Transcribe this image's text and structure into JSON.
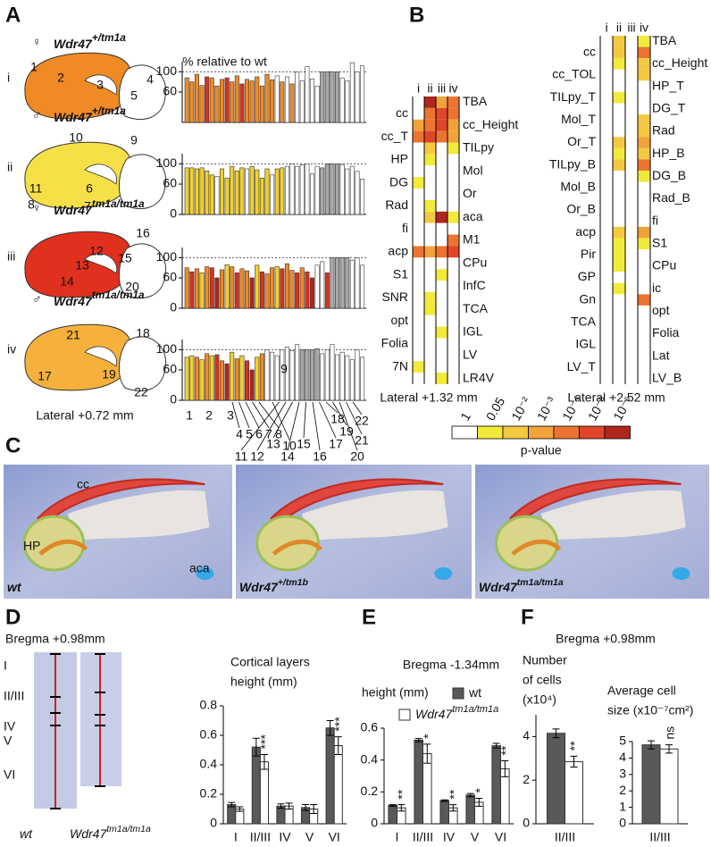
{
  "panel_labels": [
    "A",
    "B",
    "C",
    "D",
    "E",
    "F"
  ],
  "panel_a": {
    "title": "% relative to wt",
    "section": "Lateral +0.72 mm",
    "top_label": "9",
    "x_labels": [
      "1",
      "2",
      "3",
      "4",
      "5",
      "6",
      "7",
      "8",
      "9",
      "10",
      "11",
      "12",
      "13",
      "14",
      "15",
      "16",
      "17",
      "18",
      "19",
      "20",
      "21",
      "22"
    ],
    "rows": [
      {
        "numeral": "i",
        "sex": "♀",
        "gene": "Wdr47",
        "allele": "+/tm1a",
        "color": "#f08a24",
        "regions": [
          "1",
          "2",
          "3",
          "4",
          "5"
        ]
      },
      {
        "numeral": "ii",
        "sex": "♂",
        "gene": "Wdr47",
        "allele": "+/tm1a",
        "color": "#f7df48",
        "regions": [
          "10",
          "9",
          "11",
          "6",
          "8",
          "7"
        ]
      },
      {
        "numeral": "iii",
        "sex": "♀",
        "gene": "Wdr47",
        "allele": "tm1a/tm1a",
        "color": "#e0301e",
        "regions": [
          "16",
          "12",
          "15",
          "13",
          "14",
          "20"
        ]
      },
      {
        "numeral": "iv",
        "sex": "♂",
        "gene": "Wdr47",
        "allele": "tm1a/tm1a",
        "color": "#f5b13c",
        "regions": [
          "21",
          "18",
          "17",
          "19",
          "22"
        ]
      }
    ]
  },
  "panel_c": {
    "labels": [
      "cc",
      "HP",
      "aca"
    ],
    "images": [
      {
        "gene": "wt"
      },
      {
        "gene": "Wdr47",
        "allele": "+/tm1b"
      },
      {
        "gene": "Wdr47",
        "allele": "tm1a/tm1a"
      }
    ]
  },
  "panel_d": {
    "bregma": "Bregma +0.98mm",
    "layers": [
      "I",
      "II/III",
      "IV",
      "V",
      "VI"
    ],
    "samples": [
      {
        "gene": "wt"
      },
      {
        "gene": "Wdr47",
        "allele": "tm1a/tm1a"
      }
    ]
  },
  "panel_f": {
    "bregma": "Bregma +0.98mm"
  },
  "p_value_scale": {
    "title": "p-value",
    "ticks": [
      1,
      0.05,
      {
        "value": 0.01,
        "label": "10⁻²"
      },
      {
        "value": 0.001,
        "label": "10⁻³"
      },
      {
        "value": 0.0001,
        "label": "10⁻⁴"
      },
      {
        "value": 1e-05,
        "label": "10⁻⁵"
      },
      {
        "value": 1e-06,
        "label": "10⁻⁶"
      }
    ],
    "colors": [
      "#ffffff",
      "#f2ea3a",
      "#f5c842",
      "#f2a23a",
      "#ec7430",
      "#e0452a",
      "#b0261d"
    ]
  },
  "chart_data": [
    {
      "type": "bar",
      "ylim": [
        0,
        120
      ],
      "yticks": [
        60,
        100
      ],
      "reference_line": 100,
      "values": [
        88,
        80,
        95,
        73,
        90,
        88,
        72,
        85,
        88,
        80,
        92,
        76,
        85,
        82,
        90,
        72,
        95,
        84,
        92,
        80,
        90,
        76,
        100,
        82,
        110,
        86,
        72,
        100,
        100,
        100,
        100,
        88,
        82,
        118,
        100,
        112
      ],
      "colors": [
        "#f08a24",
        "#f08a24",
        "#f08a24",
        "#f08a24",
        "#d9301f",
        "#f08a24",
        "#f08a24",
        "#f08a24",
        "#d9301f",
        "#f08a24",
        "#f08a24",
        "#d9301f",
        "#f08a24",
        "#f08a24",
        "#f08a24",
        "#f08a24",
        "#f08a24",
        "#f08a24",
        "#ffffff",
        "#f08a24",
        "#ffffff",
        "#f08a24",
        "#ffffff",
        "#ffffff",
        "#ffffff",
        "#ffffff",
        "#ffffff",
        "#a8a8a8",
        "#a8a8a8",
        "#a8a8a8",
        "#a8a8a8",
        "#ffffff",
        "#ffffff",
        "#ffffff",
        "#ffffff",
        "#ffffff"
      ]
    },
    {
      "type": "bar",
      "ylim": [
        0,
        120
      ],
      "yticks": [
        0,
        60,
        100
      ],
      "reference_line": 100,
      "values": [
        92,
        92,
        90,
        92,
        86,
        78,
        75,
        90,
        72,
        95,
        86,
        92,
        90,
        95,
        88,
        72,
        90,
        78,
        90,
        92,
        95,
        100,
        95,
        98,
        100,
        80,
        95,
        92,
        100,
        100,
        100,
        98,
        90,
        95,
        85,
        70
      ],
      "colors": [
        "#f2d02a",
        "#f2d02a",
        "#f2d02a",
        "#f2d02a",
        "#f2d02a",
        "#f2d02a",
        "#ffffff",
        "#f2d02a",
        "#f2d02a",
        "#f2d02a",
        "#f2d02a",
        "#f2d02a",
        "#ffffff",
        "#f2d02a",
        "#f2d02a",
        "#f2d02a",
        "#f2d02a",
        "#ffffff",
        "#f2d02a",
        "#f2d02a",
        "#ffffff",
        "#ffffff",
        "#ffffff",
        "#ffffff",
        "#ffffff",
        "#ffffff",
        "#ffffff",
        "#a8a8a8",
        "#a8a8a8",
        "#a8a8a8",
        "#a8a8a8",
        "#ffffff",
        "#ffffff",
        "#ffffff",
        "#ffffff",
        "#ffffff"
      ]
    },
    {
      "type": "bar",
      "ylim": [
        0,
        120
      ],
      "yticks": [
        0,
        60,
        100
      ],
      "reference_line": 100,
      "values": [
        80,
        72,
        78,
        70,
        82,
        80,
        60,
        76,
        86,
        82,
        70,
        78,
        74,
        60,
        85,
        72,
        68,
        80,
        82,
        78,
        88,
        75,
        70,
        80,
        72,
        60,
        85,
        92,
        70,
        100,
        100,
        100,
        100,
        95,
        100,
        85
      ],
      "colors": [
        "#f08a24",
        "#d9301f",
        "#f08a24",
        "#f2d02a",
        "#f08a24",
        "#d9301f",
        "#b5221c",
        "#f08a24",
        "#f2d02a",
        "#f08a24",
        "#d9301f",
        "#f08a24",
        "#f08a24",
        "#b5221c",
        "#f2d02a",
        "#d9301f",
        "#f08a24",
        "#f08a24",
        "#f2d02a",
        "#d9301f",
        "#f08a24",
        "#f08a24",
        "#d9301f",
        "#f08a24",
        "#d9301f",
        "#b5221c",
        "#ffffff",
        "#ffffff",
        "#d9301f",
        "#a8a8a8",
        "#a8a8a8",
        "#a8a8a8",
        "#a8a8a8",
        "#ffffff",
        "#ffffff",
        "#ffffff"
      ]
    },
    {
      "type": "bar",
      "ylim": [
        0,
        120
      ],
      "yticks": [
        0,
        60,
        100
      ],
      "reference_line": 100,
      "values": [
        85,
        88,
        85,
        80,
        92,
        88,
        90,
        78,
        72,
        95,
        82,
        88,
        78,
        60,
        85,
        92,
        100,
        95,
        88,
        100,
        105,
        98,
        110,
        100,
        100,
        100,
        102,
        92,
        100,
        110,
        90,
        95,
        88,
        80,
        100,
        85
      ],
      "colors": [
        "#f2d02a",
        "#f2d02a",
        "#f08a24",
        "#f2d02a",
        "#f08a24",
        "#f2d02a",
        "#d9301f",
        "#f08a24",
        "#b5221c",
        "#f2d02a",
        "#f08a24",
        "#f2d02a",
        "#d9301f",
        "#b5221c",
        "#f2d02a",
        "#f08a24",
        "#ffffff",
        "#ffffff",
        "#ffffff",
        "#ffffff",
        "#ffffff",
        "#ffffff",
        "#ffffff",
        "#a8a8a8",
        "#a8a8a8",
        "#a8a8a8",
        "#a8a8a8",
        "#ffffff",
        "#ffffff",
        "#ffffff",
        "#ffffff",
        "#ffffff",
        "#ffffff",
        "#ffffff",
        "#ffffff",
        "#ffffff"
      ]
    },
    {
      "type": "heatmap",
      "title": "Lateral +1.32 mm",
      "title_color": "#e02020",
      "columns": [
        "i",
        "ii",
        "iii",
        "iv"
      ],
      "rows": [
        "TBA",
        "cc",
        "cc_Height",
        "cc_T",
        "TILpy",
        "HP",
        "Mol",
        "DG",
        "Or",
        "Rad",
        "aca",
        "fi",
        "M1",
        "acp",
        "CPu",
        "S1",
        "InfC",
        "SNR",
        "TCA",
        "opt",
        "IGL",
        "Folia",
        "LV",
        "7N",
        "LR4V"
      ],
      "values": [
        [
          1,
          1e-06,
          0.001,
          0.0001
        ],
        [
          1,
          0.0001,
          1e-05,
          0.0001
        ],
        [
          0.001,
          0.0001,
          1e-05,
          0.001
        ],
        [
          0.0001,
          1e-05,
          0.0001,
          0.001
        ],
        [
          1,
          0.01,
          1,
          0.05
        ],
        [
          1,
          0.05,
          1,
          1
        ],
        [
          1,
          1,
          1,
          1
        ],
        [
          0.05,
          1,
          1,
          1
        ],
        [
          1,
          1,
          1,
          1
        ],
        [
          1,
          0.05,
          1,
          1
        ],
        [
          1,
          0.01,
          1e-06,
          0.05
        ],
        [
          1,
          1,
          1,
          1
        ],
        [
          1,
          1,
          1,
          0.0001
        ],
        [
          0.0001,
          0.001,
          0.0001,
          1e-05
        ],
        [
          1,
          1,
          1,
          1
        ],
        [
          1,
          1,
          0.05,
          1
        ],
        [
          1,
          1,
          1,
          1
        ],
        [
          1,
          0.05,
          1,
          1
        ],
        [
          1,
          0.05,
          1,
          1
        ],
        [
          1,
          1,
          1,
          1
        ],
        [
          1,
          1,
          0.05,
          1
        ],
        [
          1,
          1,
          1,
          1
        ],
        [
          1,
          1,
          1,
          1
        ],
        [
          0.05,
          1,
          1,
          1
        ],
        [
          1,
          1,
          0.05,
          1
        ]
      ]
    },
    {
      "type": "heatmap",
      "title": "Lateral +2.52 mm",
      "title_color": "#5b3bb5",
      "columns": [
        "i",
        "ii",
        "iii",
        "iv"
      ],
      "rows": [
        "TBA",
        "cc",
        "cc_Height",
        "cc_TOL",
        "HP_T",
        "TILpy_T",
        "DG_T",
        "Mol_T",
        "Rad",
        "Or_T",
        "HP_B",
        "TILpy_B",
        "DG_B",
        "Mol_B",
        "Rad_B",
        "Or_B",
        "fi",
        "acp",
        "S1",
        "Pir",
        "CPu",
        "GP",
        "ic",
        "Gn",
        "opt",
        "TCA",
        "Folia",
        "IGL",
        "Lat",
        "LV_T",
        "LV_B"
      ],
      "values": [
        [
          1,
          0.01,
          1,
          0.05
        ],
        [
          1,
          0.01,
          1,
          0.0001
        ],
        [
          1,
          0.05,
          1,
          0.01
        ],
        [
          1,
          1,
          1,
          0.01
        ],
        [
          1,
          1,
          1,
          1
        ],
        [
          1,
          0.05,
          1,
          1
        ],
        [
          1,
          1,
          1,
          1
        ],
        [
          1,
          1,
          1,
          0.01
        ],
        [
          1,
          1,
          1,
          0.01
        ],
        [
          1,
          0.01,
          1,
          0.001
        ],
        [
          1,
          0.05,
          1,
          0.01
        ],
        [
          1,
          0.01,
          1,
          0.0001
        ],
        [
          1,
          1,
          1,
          0.05
        ],
        [
          1,
          1,
          1,
          1
        ],
        [
          1,
          1,
          1,
          1
        ],
        [
          1,
          1,
          1,
          1
        ],
        [
          1,
          1,
          1,
          1
        ],
        [
          1,
          0.01,
          1,
          0.001
        ],
        [
          1,
          0.05,
          1,
          0.05
        ],
        [
          1,
          0.05,
          1,
          1
        ],
        [
          1,
          0.05,
          1,
          1
        ],
        [
          1,
          1,
          1,
          1
        ],
        [
          1,
          0.05,
          1,
          1
        ],
        [
          1,
          1,
          1,
          0.0001
        ],
        [
          1,
          1,
          1,
          1
        ],
        [
          1,
          1,
          1,
          1
        ],
        [
          1,
          1,
          1,
          1
        ],
        [
          1,
          1,
          1,
          1
        ],
        [
          1,
          1,
          1,
          1
        ],
        [
          1,
          1,
          1,
          1
        ],
        [
          1,
          1,
          1,
          1
        ]
      ]
    },
    {
      "type": "grouped_bar",
      "title_lines": [
        "Cortical layers",
        "height (mm)"
      ],
      "categories": [
        "I",
        "II/III",
        "IV",
        "V",
        "VI"
      ],
      "ylim": [
        0,
        0.8
      ],
      "yticks": [
        0,
        0.2,
        0.4,
        0.6,
        0.8
      ],
      "series": [
        {
          "color": "#595959",
          "values": [
            0.13,
            0.52,
            0.12,
            0.11,
            0.65
          ],
          "errors": [
            0.015,
            0.06,
            0.015,
            0.02,
            0.05
          ],
          "significance": [
            null,
            null,
            null,
            null,
            null
          ]
        },
        {
          "color": "#ffffff",
          "values": [
            0.1,
            0.42,
            0.12,
            0.1,
            0.53
          ],
          "errors": [
            0.015,
            0.05,
            0.02,
            0.03,
            0.06
          ],
          "significance": [
            null,
            "***",
            null,
            null,
            "***"
          ]
        }
      ]
    },
    {
      "type": "grouped_bar",
      "title": "Bregma -1.34mm",
      "ylabel": "height (mm)",
      "categories": [
        "I",
        "II/III",
        "IV",
        "V",
        "VI"
      ],
      "ylim": [
        0,
        0.6
      ],
      "yticks": [
        0,
        0.2,
        0.4,
        0.6
      ],
      "series": [
        {
          "name": "wt",
          "color": "#595959",
          "values": [
            0.115,
            0.525,
            0.145,
            0.18,
            0.49
          ],
          "errors": [
            0.005,
            0.01,
            0.005,
            0.01,
            0.015
          ],
          "significance": [
            null,
            null,
            null,
            null,
            null
          ]
        },
        {
          "name": "Wdr47",
          "name_sup": "tm1a/tm1a",
          "color": "#ffffff",
          "values": [
            0.1,
            0.44,
            0.1,
            0.135,
            0.345
          ],
          "errors": [
            0.02,
            0.06,
            0.02,
            0.025,
            0.05
          ],
          "significance": [
            "**",
            "*",
            "**",
            "*",
            "**"
          ]
        }
      ]
    },
    {
      "type": "grouped_bar",
      "ylabel_lines": [
        "Number",
        "of cells",
        "(x10⁴)"
      ],
      "categories": [
        "II/III"
      ],
      "ylim": [
        0,
        5
      ],
      "yticks": [
        0,
        2,
        4
      ],
      "series": [
        {
          "color": "#595959",
          "values": [
            4.15
          ],
          "errors": [
            0.2
          ],
          "significance": [
            null
          ]
        },
        {
          "color": "#ffffff",
          "values": [
            2.85
          ],
          "errors": [
            0.25
          ],
          "significance": [
            "**"
          ]
        }
      ]
    },
    {
      "type": "grouped_bar",
      "ylabel_lines": [
        "Average cell",
        "size (x10⁻⁷cm²)"
      ],
      "categories": [
        "II/III"
      ],
      "ylim": [
        0,
        5
      ],
      "yticks": [
        0,
        1,
        2,
        3,
        4,
        5
      ],
      "series": [
        {
          "color": "#595959",
          "values": [
            4.8
          ],
          "errors": [
            0.25
          ],
          "significance": [
            null
          ]
        },
        {
          "color": "#ffffff",
          "values": [
            4.55
          ],
          "errors": [
            0.25
          ],
          "significance": [
            "ns"
          ]
        }
      ]
    }
  ]
}
